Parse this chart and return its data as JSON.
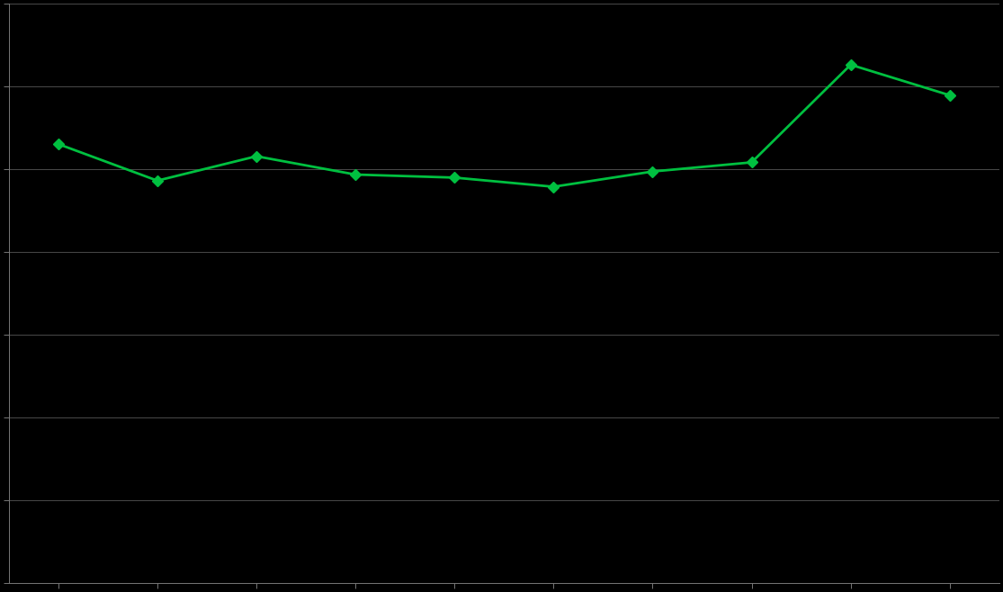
{
  "x": [
    1,
    2,
    3,
    4,
    5,
    6,
    7,
    8,
    9,
    10
  ],
  "y": [
    7200,
    6600,
    7000,
    6700,
    6650,
    6500,
    6750,
    6900,
    8500,
    8000
  ],
  "line_color": "#00C040",
  "marker_color": "#00C040",
  "marker": "D",
  "marker_size": 6,
  "line_width": 2.0,
  "background_color": "#000000",
  "grid_color": "#4a4a4a",
  "spine_color": "#777777",
  "tick_color": "#777777",
  "ylim": [
    0,
    9500
  ],
  "xlim": [
    0.5,
    10.5
  ],
  "ytick_positions": [
    0,
    1357,
    2714,
    4071,
    5429,
    6786,
    8143,
    9500
  ],
  "xtick_positions": [
    1,
    2,
    3,
    4,
    5,
    6,
    7,
    8,
    9,
    10
  ]
}
